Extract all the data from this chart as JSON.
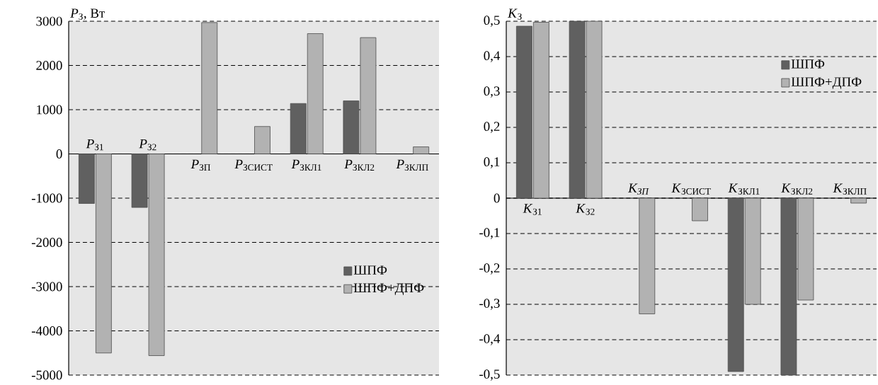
{
  "chart_data": [
    {
      "type": "bar",
      "ylabel": "*P*$_{З}$, Вт",
      "categories": [
        "*P*$_{З1}$",
        "*P*$_{З2}$",
        "*P*$_{ЗП}$",
        "*P*$_{ЗСИСТ}$",
        "*P*$_{ЗКЛ1}$",
        "*P*$_{ЗКЛ2}$",
        "*P*$_{ЗКЛП}$"
      ],
      "series": [
        {
          "name": "ШПФ",
          "color": "#606060",
          "values": [
            -1120,
            -1210,
            null,
            null,
            1140,
            1200,
            null
          ]
        },
        {
          "name": "ШПФ+ДПФ",
          "color": "#b2b2b2",
          "values": [
            -4500,
            -4560,
            2970,
            620,
            2720,
            2630,
            160
          ]
        }
      ],
      "ylim": [
        -5000,
        3000
      ],
      "yticks": [
        -5000,
        -4000,
        -3000,
        -2000,
        -1000,
        0,
        1000,
        2000,
        3000
      ],
      "grid": "y",
      "legend": "bottom right"
    },
    {
      "type": "bar",
      "ylabel": "*K*$_{З}$",
      "categories": [
        "*K*$_{З1}$",
        "*K*$_{З2}$",
        "*K$_{ЗП}$*",
        "*K*$_{ЗСИСТ}$",
        "*K*$_{ЗКЛ1}$",
        "*K*$_{ЗКЛ2}$",
        "*K*$_{ЗКЛП}$"
      ],
      "series": [
        {
          "name": "ШПФ",
          "color": "#606060",
          "values": [
            0.486,
            0.5,
            null,
            null,
            -0.49,
            -0.5,
            null
          ]
        },
        {
          "name": "ШПФ+ДПФ",
          "color": "#b2b2b2",
          "values": [
            0.497,
            0.5,
            -0.327,
            -0.064,
            -0.3,
            -0.288,
            -0.014
          ]
        }
      ],
      "ylim": [
        -0.5,
        0.5
      ],
      "yticks": [
        {
          "value": -0.5,
          "label": "-0,5"
        },
        {
          "value": -0.4,
          "label": "-0,4"
        },
        {
          "value": -0.3,
          "label": "-0,3"
        },
        {
          "value": -0.2,
          "label": "-0,2"
        },
        {
          "value": -0.1,
          "label": "-0,1"
        },
        0,
        {
          "value": 0.1,
          "label": "0,1"
        },
        {
          "value": 0.2,
          "label": "0,2"
        },
        {
          "value": 0.3,
          "label": "0,3"
        },
        {
          "value": 0.4,
          "label": "0,4"
        },
        {
          "value": 0.5,
          "label": "0,5"
        }
      ],
      "grid": "y",
      "legend": "top right"
    }
  ]
}
